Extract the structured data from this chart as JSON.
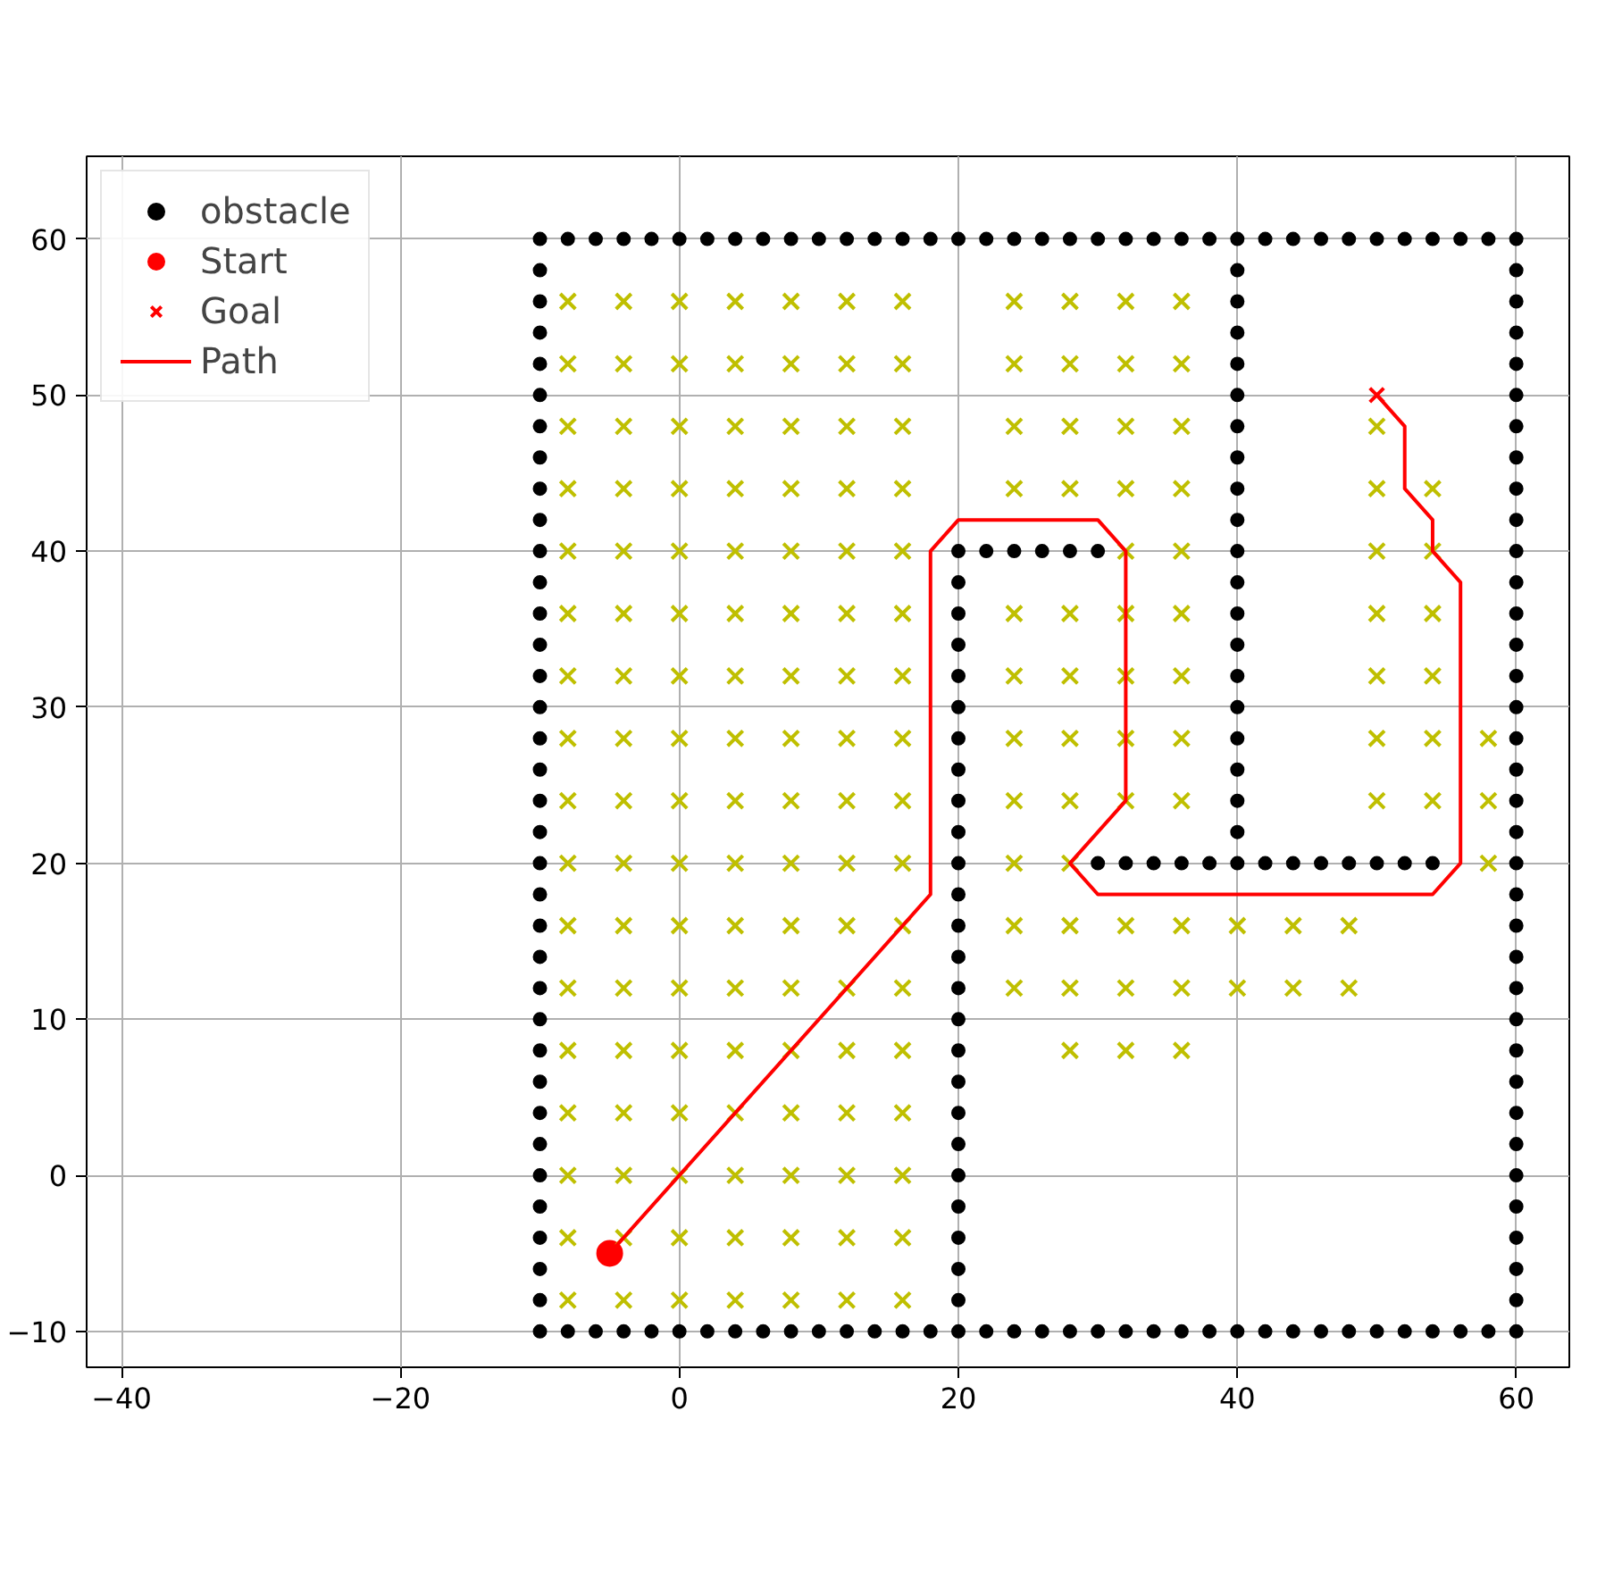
{
  "chart_data": {
    "type": "scatter",
    "xlim": [
      -42.5,
      63.8
    ],
    "ylim": [
      -12.3,
      65.3
    ],
    "xticks": [
      {
        "value": -40,
        "label": "−40"
      },
      {
        "value": -20,
        "label": "−20"
      },
      0,
      20,
      40,
      60
    ],
    "yticks": [
      {
        "value": -10,
        "label": "−10"
      },
      0,
      10,
      20,
      30,
      40,
      50,
      60
    ],
    "grid": true,
    "legend": "top left",
    "series": [
      {
        "name": "obstacle",
        "marker": "circle",
        "color": "#000000",
        "x": [
          -10,
          -8,
          -6,
          -4,
          -2,
          0,
          2,
          4,
          6,
          8,
          10,
          12,
          14,
          16,
          18,
          20,
          22,
          24,
          26,
          28,
          30,
          32,
          34,
          36,
          38,
          40,
          42,
          44,
          46,
          48,
          50,
          52,
          54,
          56,
          58,
          60,
          -10,
          -8,
          -6,
          -4,
          -2,
          0,
          2,
          4,
          6,
          8,
          10,
          12,
          14,
          16,
          18,
          20,
          22,
          24,
          26,
          28,
          30,
          32,
          34,
          36,
          38,
          40,
          42,
          44,
          46,
          48,
          50,
          52,
          54,
          56,
          58,
          60,
          -10,
          -10,
          -10,
          -10,
          -10,
          -10,
          -10,
          -10,
          -10,
          -10,
          -10,
          -10,
          -10,
          -10,
          -10,
          -10,
          -10,
          -10,
          -10,
          -10,
          -10,
          -10,
          -10,
          -10,
          -10,
          -10,
          -10,
          -10,
          -10,
          -10,
          -10,
          -10,
          -10,
          -10,
          60,
          60,
          60,
          60,
          60,
          60,
          60,
          60,
          60,
          60,
          60,
          60,
          60,
          60,
          60,
          60,
          60,
          60,
          60,
          60,
          60,
          60,
          60,
          60,
          60,
          60,
          60,
          60,
          60,
          60,
          60,
          60,
          60,
          60,
          20,
          20,
          20,
          20,
          20,
          20,
          20,
          20,
          20,
          20,
          20,
          20,
          20,
          20,
          20,
          20,
          20,
          20,
          20,
          20,
          20,
          20,
          20,
          20,
          20,
          22,
          24,
          26,
          28,
          30,
          40,
          40,
          40,
          40,
          40,
          40,
          40,
          40,
          40,
          40,
          40,
          40,
          40,
          40,
          40,
          40,
          40,
          40,
          40,
          40,
          30,
          32,
          34,
          36,
          38,
          42,
          44,
          46,
          48,
          50,
          52,
          54
        ],
        "values": [
          -10,
          -10,
          -10,
          -10,
          -10,
          -10,
          -10,
          -10,
          -10,
          -10,
          -10,
          -10,
          -10,
          -10,
          -10,
          -10,
          -10,
          -10,
          -10,
          -10,
          -10,
          -10,
          -10,
          -10,
          -10,
          -10,
          -10,
          -10,
          -10,
          -10,
          -10,
          -10,
          -10,
          -10,
          -10,
          -10,
          60,
          60,
          60,
          60,
          60,
          60,
          60,
          60,
          60,
          60,
          60,
          60,
          60,
          60,
          60,
          60,
          60,
          60,
          60,
          60,
          60,
          60,
          60,
          60,
          60,
          60,
          60,
          60,
          60,
          60,
          60,
          60,
          60,
          60,
          60,
          60,
          -8,
          -6,
          -4,
          -2,
          0,
          2,
          4,
          6,
          8,
          10,
          12,
          14,
          16,
          18,
          20,
          22,
          24,
          26,
          28,
          30,
          32,
          34,
          36,
          38,
          40,
          42,
          44,
          46,
          48,
          50,
          52,
          54,
          56,
          58,
          -8,
          -6,
          -4,
          -2,
          0,
          2,
          4,
          6,
          8,
          10,
          12,
          14,
          16,
          18,
          20,
          22,
          24,
          26,
          28,
          30,
          32,
          34,
          36,
          38,
          40,
          42,
          44,
          46,
          48,
          50,
          52,
          54,
          56,
          58,
          -8,
          -6,
          -4,
          -2,
          0,
          2,
          4,
          6,
          8,
          10,
          12,
          14,
          16,
          18,
          20,
          22,
          24,
          26,
          28,
          30,
          32,
          34,
          36,
          38,
          40,
          40,
          40,
          40,
          40,
          40,
          20,
          22,
          24,
          26,
          28,
          30,
          32,
          34,
          36,
          38,
          40,
          42,
          44,
          46,
          48,
          50,
          52,
          54,
          56,
          58,
          20,
          20,
          20,
          20,
          20,
          20,
          20,
          20,
          20,
          20,
          20,
          20
        ]
      },
      {
        "name": "Start",
        "marker": "circle",
        "color": "#ff0000",
        "x": [
          -5
        ],
        "values": [
          -5
        ]
      },
      {
        "name": "Goal",
        "marker": "cross",
        "color": "#ff0000",
        "x": [
          50
        ],
        "values": [
          50
        ]
      },
      {
        "marker": "cross",
        "color": "#bfbf00",
        "x": [
          -8,
          -4,
          0,
          4,
          8,
          12,
          16,
          -8,
          -4,
          0,
          4,
          8,
          12,
          16,
          -8,
          -4,
          0,
          4,
          8,
          12,
          16,
          -8,
          -4,
          0,
          4,
          8,
          12,
          16,
          -8,
          -4,
          0,
          4,
          8,
          12,
          16,
          28,
          32,
          36,
          -8,
          -4,
          0,
          4,
          8,
          12,
          16,
          24,
          28,
          32,
          36,
          40,
          44,
          48,
          -8,
          -4,
          0,
          4,
          8,
          12,
          16,
          24,
          28,
          32,
          36,
          40,
          44,
          48,
          -8,
          -4,
          0,
          4,
          8,
          12,
          16,
          24,
          28,
          58,
          -8,
          -4,
          0,
          4,
          8,
          12,
          16,
          24,
          28,
          32,
          36,
          50,
          54,
          58,
          -8,
          -4,
          0,
          4,
          8,
          12,
          16,
          24,
          28,
          32,
          36,
          50,
          54,
          58,
          -8,
          -4,
          0,
          4,
          8,
          12,
          16,
          24,
          28,
          32,
          36,
          50,
          54,
          -8,
          -4,
          0,
          4,
          8,
          12,
          16,
          24,
          28,
          32,
          36,
          50,
          54,
          -8,
          -4,
          0,
          4,
          8,
          12,
          16,
          32,
          36,
          50,
          54,
          -8,
          -4,
          0,
          4,
          8,
          12,
          16,
          24,
          28,
          32,
          36,
          50,
          54,
          -8,
          -4,
          0,
          4,
          8,
          12,
          16,
          24,
          28,
          32,
          36,
          50,
          -8,
          -4,
          0,
          4,
          8,
          12,
          16,
          24,
          28,
          32,
          36,
          -8,
          -4,
          0,
          4,
          8,
          12,
          16,
          24,
          28,
          32,
          36
        ],
        "values": [
          -8,
          -8,
          -8,
          -8,
          -8,
          -8,
          -8,
          -4,
          -4,
          -4,
          -4,
          -4,
          -4,
          -4,
          0,
          0,
          0,
          0,
          0,
          0,
          0,
          4,
          4,
          4,
          4,
          4,
          4,
          4,
          8,
          8,
          8,
          8,
          8,
          8,
          8,
          8,
          8,
          8,
          12,
          12,
          12,
          12,
          12,
          12,
          12,
          12,
          12,
          12,
          12,
          12,
          12,
          12,
          16,
          16,
          16,
          16,
          16,
          16,
          16,
          16,
          16,
          16,
          16,
          16,
          16,
          16,
          20,
          20,
          20,
          20,
          20,
          20,
          20,
          20,
          20,
          20,
          24,
          24,
          24,
          24,
          24,
          24,
          24,
          24,
          24,
          24,
          24,
          24,
          24,
          24,
          28,
          28,
          28,
          28,
          28,
          28,
          28,
          28,
          28,
          28,
          28,
          28,
          28,
          28,
          32,
          32,
          32,
          32,
          32,
          32,
          32,
          32,
          32,
          32,
          32,
          32,
          32,
          36,
          36,
          36,
          36,
          36,
          36,
          36,
          36,
          36,
          36,
          36,
          36,
          36,
          40,
          40,
          40,
          40,
          40,
          40,
          40,
          40,
          40,
          40,
          40,
          44,
          44,
          44,
          44,
          44,
          44,
          44,
          44,
          44,
          44,
          44,
          44,
          44,
          48,
          48,
          48,
          48,
          48,
          48,
          48,
          48,
          48,
          48,
          48,
          48,
          52,
          52,
          52,
          52,
          52,
          52,
          52,
          52,
          52,
          52,
          52,
          56,
          56,
          56,
          56,
          56,
          56,
          56,
          56,
          56,
          56,
          56
        ]
      },
      {
        "name": "Path",
        "type": "line",
        "line_style": "solid",
        "color": "#ff0000",
        "x": [
          -5,
          18,
          18,
          20,
          30,
          32,
          32,
          28,
          30,
          54,
          56,
          56,
          54,
          54,
          52,
          52,
          50
        ],
        "values": [
          -5,
          18,
          40,
          42,
          42,
          40,
          24,
          20,
          18,
          18,
          20,
          38,
          40,
          42,
          44,
          48,
          50
        ]
      }
    ]
  }
}
